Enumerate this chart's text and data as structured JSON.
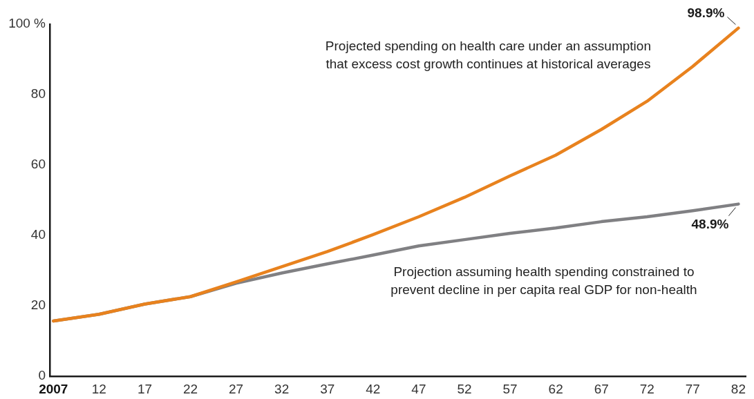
{
  "chart_data": {
    "type": "line",
    "x": [
      2007,
      2012,
      2017,
      2022,
      2027,
      2032,
      2037,
      2042,
      2047,
      2052,
      2057,
      2062,
      2067,
      2072,
      2077,
      2082
    ],
    "series": [
      {
        "color": "#e8821e",
        "values": [
          15.7,
          17.6,
          20.5,
          22.6,
          26.8,
          31.1,
          35.4,
          40.2,
          45.3,
          50.8,
          56.9,
          62.8,
          70.1,
          78.1,
          88.0,
          98.9
        ],
        "value_labels": [
          null,
          null,
          null,
          null,
          null,
          null,
          null,
          null,
          null,
          null,
          null,
          null,
          null,
          null,
          null,
          "98.9%"
        ]
      },
      {
        "color": "#808083",
        "values": [
          15.7,
          17.6,
          20.5,
          22.6,
          26.4,
          29.3,
          31.9,
          34.4,
          37.0,
          38.8,
          40.6,
          42.1,
          43.9,
          45.3,
          47.0,
          48.9
        ],
        "value_labels": [
          null,
          null,
          null,
          null,
          null,
          null,
          null,
          null,
          null,
          null,
          null,
          null,
          null,
          null,
          null,
          "48.9%"
        ]
      }
    ],
    "xlim": [
      2006.6,
      2082.8
    ],
    "xticks": [
      {
        "value": 2007,
        "label": "2007"
      },
      {
        "value": 2012,
        "label": "12"
      },
      {
        "value": 2017,
        "label": "17"
      },
      {
        "value": 2022,
        "label": "22"
      },
      {
        "value": 2027,
        "label": "27"
      },
      {
        "value": 2032,
        "label": "32"
      },
      {
        "value": 2037,
        "label": "37"
      },
      {
        "value": 2042,
        "label": "42"
      },
      {
        "value": 2047,
        "label": "47"
      },
      {
        "value": 2052,
        "label": "52"
      },
      {
        "value": 2057,
        "label": "57"
      },
      {
        "value": 2062,
        "label": "62"
      },
      {
        "value": 2067,
        "label": "67"
      },
      {
        "value": 2072,
        "label": "72"
      },
      {
        "value": 2077,
        "label": "77"
      },
      {
        "value": 2082,
        "label": "82"
      }
    ],
    "ylim": [
      0,
      100
    ],
    "yticks": [
      0,
      20,
      40,
      60,
      80,
      {
        "value": 100,
        "label": "100 %"
      }
    ],
    "annotations": [
      "Projected spending on health care under an assumption\nthat excess cost growth continues at historical averages",
      "Projection assuming health spending constrained to\nprevent decline in per capita real GDP for non-health"
    ],
    "grid": false,
    "legend": false,
    "marker": "none",
    "line_style": "solid"
  }
}
